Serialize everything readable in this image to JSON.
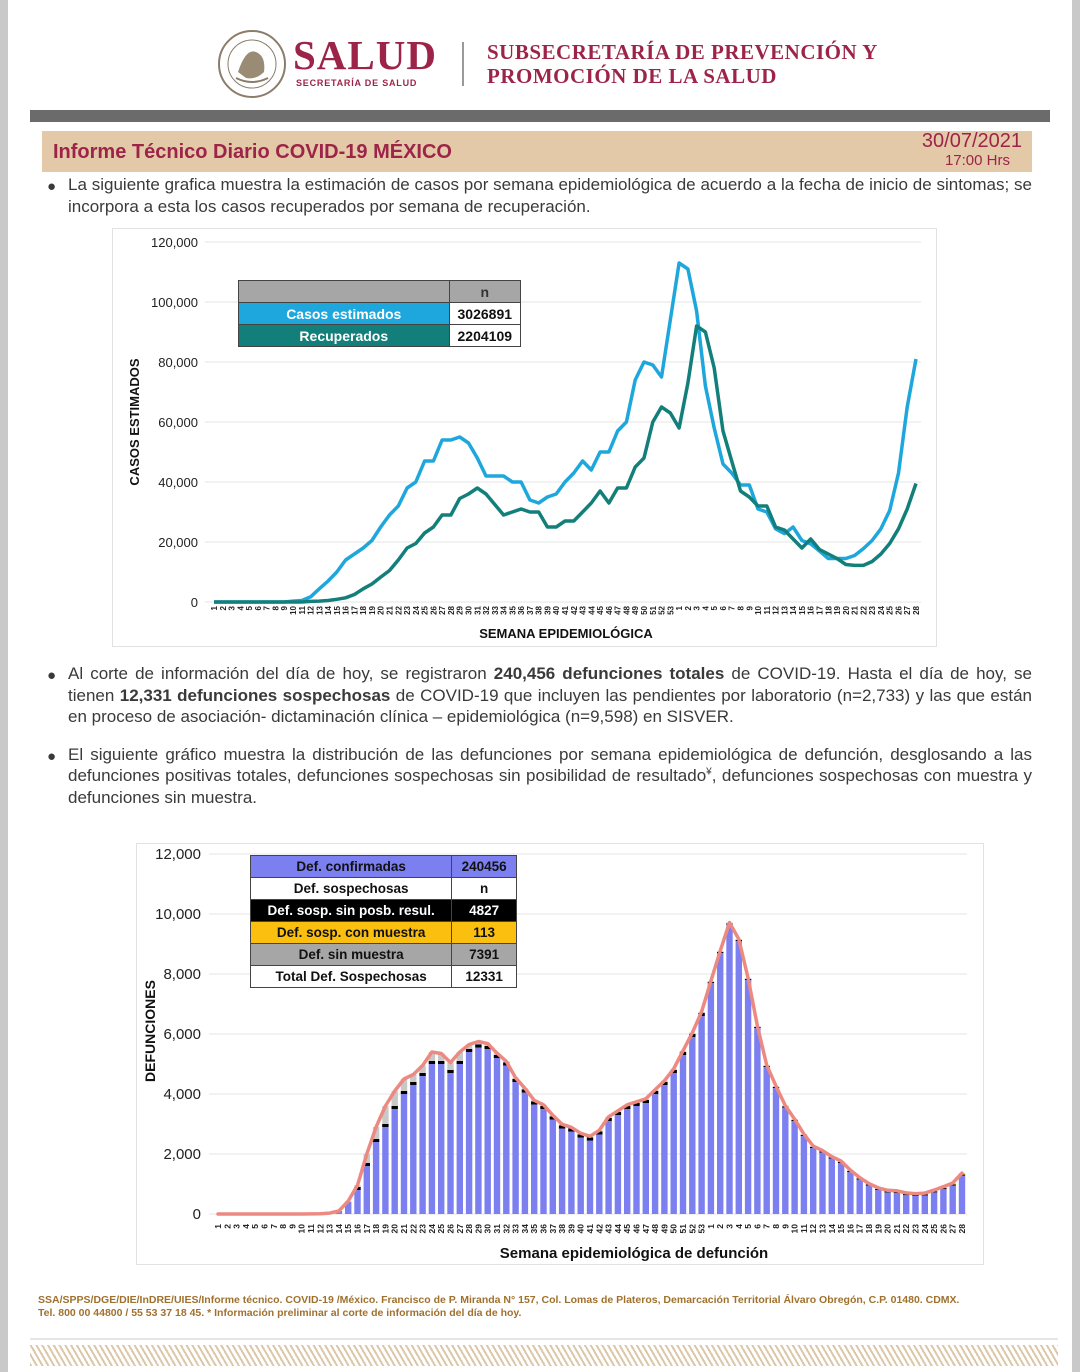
{
  "header": {
    "logo_text": "SALUD",
    "logo_subtext": "SECRETARÍA DE SALUD",
    "seal_text": "ESTADOS UNIDOS MEXICANOS",
    "subtitle_line1": "SUBSECRETARÍA DE PREVENCIÓN Y",
    "subtitle_line2": "PROMOCIÓN DE LA SALUD"
  },
  "banner": {
    "title": "Informe Técnico Diario COVID-19 MÉXICO",
    "date": "30/07/2021",
    "time": "17:00 Hrs"
  },
  "paragraphs": {
    "p1": "La siguiente grafica muestra la estimación de casos por semana epidemiológica de acuerdo a la fecha de inicio de sintomas; se incorpora a esta los casos recuperados por semana de recuperación.",
    "p2_a": "Al corte de información del día de hoy, se registraron ",
    "p2_b": "240,456 defunciones totales",
    "p2_c": " de COVID-19. Hasta el día de hoy, se tienen ",
    "p2_d": "12,331 defunciones sospechosas",
    "p2_e": " de COVID-19 que incluyen las pendientes por laboratorio (n=2,733) y las que están en proceso de asociación- dictaminación clínica – epidemiológica (n=9,598) en SISVER.",
    "p3_a": "El siguiente gráfico muestra la distribución de las defunciones por semana epidemiológica de defunción, desglosando a las defunciones positivas totales, defunciones sospechosas sin posibilidad de resultado",
    "p3_sup": "¥",
    "p3_b": ", defunciones sospechosas con muestra y defunciones sin muestra."
  },
  "legend1": {
    "header_n": "n",
    "rows": [
      {
        "label": "Casos estimados",
        "value": "3026891",
        "color": "#1ea7dc"
      },
      {
        "label": "Recuperados",
        "value": "2204109",
        "color": "#137f7a"
      }
    ]
  },
  "legend2": {
    "rows": [
      {
        "label": "Def. confirmadas",
        "value": "240456",
        "bg": "#7b7fef",
        "fg": "#111111"
      },
      {
        "label": "Def. sospechosas",
        "value": "n",
        "bg": "#ffffff",
        "fg": "#111111"
      },
      {
        "label": "Def. sosp. sin posb. resul.",
        "value": "4827",
        "bg": "#000000",
        "fg": "#ffffff"
      },
      {
        "label": "Def. sosp. con  muestra",
        "value": "113",
        "bg": "#fbbf0f",
        "fg": "#111111"
      },
      {
        "label": "Def. sin muestra",
        "value": "7391",
        "bg": "#a6a6a6",
        "fg": "#111111"
      },
      {
        "label": "Total Def. Sospechosas",
        "value": "12331",
        "bg": "#ffffff",
        "fg": "#111111"
      }
    ]
  },
  "chart_data": [
    {
      "type": "line",
      "xlabel": "SEMANA EPIDEMIOLÓGICA",
      "ylabel": "CASOS ESTIMADOS",
      "ylim": [
        0,
        120000
      ],
      "yticks": [
        "0",
        "20,000",
        "40,000",
        "60,000",
        "80,000",
        "100,000",
        "120,000"
      ],
      "grid": true,
      "legend": "top-left table",
      "x": [
        "1",
        "2",
        "3",
        "4",
        "5",
        "6",
        "7",
        "8",
        "9",
        "10",
        "11",
        "12",
        "13",
        "14",
        "15",
        "16",
        "17",
        "18",
        "19",
        "20",
        "21",
        "22",
        "23",
        "24",
        "25",
        "26",
        "27",
        "28",
        "29",
        "30",
        "31",
        "32",
        "33",
        "34",
        "35",
        "36",
        "37",
        "38",
        "39",
        "40",
        "41",
        "42",
        "43",
        "44",
        "45",
        "46",
        "47",
        "48",
        "49",
        "50",
        "51",
        "52",
        "53",
        "1",
        "2",
        "3",
        "4",
        "5",
        "6",
        "7",
        "8",
        "9",
        "10",
        "11",
        "12",
        "13",
        "14",
        "15",
        "16",
        "17",
        "18",
        "19",
        "20",
        "21",
        "22",
        "23",
        "24",
        "25",
        "26",
        "27",
        "28"
      ],
      "series": [
        {
          "name": "Casos estimados",
          "color": "#1ea7dc",
          "values": [
            0,
            0,
            0,
            0,
            0,
            0,
            0,
            0,
            0,
            300,
            500,
            1700,
            4400,
            7000,
            10000,
            14000,
            16000,
            18000,
            20500,
            25000,
            29000,
            32000,
            38000,
            40000,
            47000,
            47000,
            54000,
            54000,
            55000,
            53000,
            48000,
            42000,
            42000,
            42000,
            40000,
            40000,
            34000,
            33000,
            35000,
            36000,
            40000,
            43000,
            47000,
            44000,
            50000,
            50000,
            57000,
            60000,
            74000,
            80000,
            79000,
            75000,
            94000,
            113000,
            111000,
            97000,
            72000,
            58000,
            46000,
            43000,
            39000,
            39000,
            31000,
            30000,
            24400,
            22800,
            25000,
            20500,
            19400,
            17000,
            14500,
            14500,
            14500,
            15500,
            17800,
            20500,
            24400,
            30500,
            43000,
            65000,
            81000
          ]
        },
        {
          "name": "Recuperados",
          "color": "#137f7a",
          "values": [
            0,
            0,
            0,
            0,
            0,
            0,
            0,
            0,
            0,
            0,
            0,
            200,
            300,
            500,
            900,
            1400,
            2500,
            4400,
            6000,
            8300,
            10500,
            14000,
            18000,
            19500,
            23000,
            25000,
            29000,
            29000,
            34500,
            36000,
            38000,
            36000,
            32500,
            29000,
            30000,
            31000,
            30000,
            30000,
            25000,
            25000,
            27000,
            27000,
            30000,
            33000,
            37000,
            33000,
            38000,
            38000,
            45000,
            48000,
            60000,
            65000,
            63000,
            58000,
            73000,
            92000,
            90000,
            78000,
            57000,
            47000,
            37000,
            35000,
            32000,
            32000,
            25000,
            24000,
            21000,
            18000,
            21000,
            17500,
            16000,
            14500,
            12500,
            12200,
            12200,
            13500,
            16000,
            19500,
            24400,
            31000,
            39500
          ]
        }
      ]
    },
    {
      "type": "bar",
      "stacked": true,
      "xlabel": "Semana epidemiológica de defunción",
      "ylabel": "DEFUNCIONES",
      "ylim": [
        0,
        12000
      ],
      "yticks": [
        "0",
        "2,000",
        "4,000",
        "6,000",
        "8,000",
        "10,000",
        "12,000"
      ],
      "grid": true,
      "legend": "top-left table",
      "x": [
        "1",
        "2",
        "3",
        "4",
        "5",
        "6",
        "7",
        "8",
        "9",
        "10",
        "11",
        "12",
        "13",
        "14",
        "15",
        "16",
        "17",
        "18",
        "19",
        "20",
        "21",
        "22",
        "23",
        "24",
        "25",
        "26",
        "27",
        "28",
        "29",
        "30",
        "31",
        "32",
        "33",
        "34",
        "35",
        "36",
        "37",
        "38",
        "39",
        "40",
        "41",
        "42",
        "43",
        "44",
        "45",
        "46",
        "47",
        "48",
        "49",
        "50",
        "51",
        "52",
        "53",
        "1",
        "2",
        "3",
        "4",
        "5",
        "6",
        "7",
        "8",
        "9",
        "10",
        "11",
        "12",
        "13",
        "14",
        "15",
        "16",
        "17",
        "18",
        "19",
        "20",
        "21",
        "22",
        "23",
        "24",
        "25",
        "26",
        "27",
        "28"
      ],
      "series": [
        {
          "name": "Def. confirmadas",
          "color": "#7b7fef",
          "values": [
            0,
            0,
            0,
            0,
            0,
            0,
            0,
            0,
            0,
            0,
            5,
            10,
            30,
            100,
            400,
            800,
            1600,
            2400,
            2900,
            3500,
            4000,
            4300,
            4600,
            5000,
            5000,
            4700,
            5000,
            5400,
            5550,
            5500,
            5200,
            4950,
            4400,
            4050,
            3650,
            3500,
            3150,
            2850,
            2750,
            2550,
            2450,
            2650,
            3100,
            3300,
            3500,
            3600,
            3700,
            4000,
            4300,
            4700,
            5300,
            5900,
            6600,
            7700,
            8700,
            9650,
            9100,
            7800,
            6200,
            4900,
            4200,
            3550,
            3100,
            2600,
            2200,
            2050,
            1850,
            1700,
            1400,
            1150,
            950,
            800,
            720,
            700,
            630,
            600,
            620,
            720,
            830,
            950,
            1280
          ]
        },
        {
          "name": "Def. sosp. sin posb. resul.",
          "color": "#000000",
          "values": [
            0,
            0,
            0,
            0,
            0,
            0,
            0,
            0,
            0,
            0,
            0,
            0,
            0,
            0,
            0,
            100,
            100,
            100,
            100,
            100,
            100,
            100,
            100,
            100,
            100,
            100,
            100,
            100,
            100,
            100,
            100,
            100,
            100,
            100,
            100,
            100,
            100,
            100,
            100,
            100,
            100,
            100,
            100,
            100,
            100,
            100,
            100,
            100,
            100,
            100,
            100,
            100,
            100,
            35,
            35,
            35,
            35,
            35,
            35,
            35,
            35,
            35,
            35,
            35,
            35,
            35,
            35,
            35,
            35,
            35,
            35,
            35,
            35,
            35,
            35,
            35,
            35,
            35,
            35,
            35,
            35
          ]
        },
        {
          "name": "Def. sosp. con  muestra",
          "color": "#fbbf0f",
          "values": [
            0,
            0,
            0,
            0,
            0,
            0,
            0,
            0,
            0,
            0,
            0,
            0,
            0,
            0,
            0,
            0,
            0,
            0,
            0,
            0,
            0,
            0,
            0,
            0,
            0,
            0,
            0,
            0,
            0,
            0,
            0,
            0,
            0,
            0,
            0,
            0,
            0,
            0,
            0,
            0,
            0,
            0,
            0,
            0,
            0,
            0,
            0,
            0,
            0,
            0,
            0,
            0,
            0,
            0,
            0,
            0,
            0,
            0,
            0,
            0,
            0,
            0,
            0,
            0,
            0,
            0,
            0,
            0,
            0,
            0,
            0,
            5,
            5,
            8,
            8,
            10,
            12,
            12,
            15,
            18,
            20
          ]
        },
        {
          "name": "Def. sin muestra",
          "color": "#c8c8c8",
          "values": [
            0,
            0,
            0,
            0,
            0,
            0,
            0,
            0,
            0,
            0,
            0,
            0,
            0,
            0,
            30,
            60,
            300,
            400,
            600,
            500,
            400,
            250,
            250,
            300,
            250,
            250,
            300,
            150,
            100,
            80,
            60,
            40,
            40,
            40,
            40,
            40,
            40,
            40,
            40,
            40,
            40,
            40,
            40,
            40,
            40,
            40,
            40,
            40,
            40,
            40,
            40,
            40,
            40,
            30,
            30,
            30,
            30,
            30,
            30,
            30,
            30,
            30,
            30,
            30,
            30,
            30,
            30,
            30,
            30,
            30,
            30,
            30,
            30,
            30,
            30,
            30,
            30,
            30,
            30,
            30,
            30
          ]
        }
      ]
    }
  ],
  "footer": {
    "line1": "SSA/SPPS/DGE/DIE/InDRE/UIES/Informe técnico. COVID-19 /México. Francisco de P. Miranda N° 157, Col. Lomas de Plateros, Demarcación Territorial Álvaro Obregón, C.P. 01480. CDMX.",
    "line2": "Tel. 800 00 44800 / 55 53 37 18 45. * Información preliminar al corte de información del día de hoy."
  }
}
